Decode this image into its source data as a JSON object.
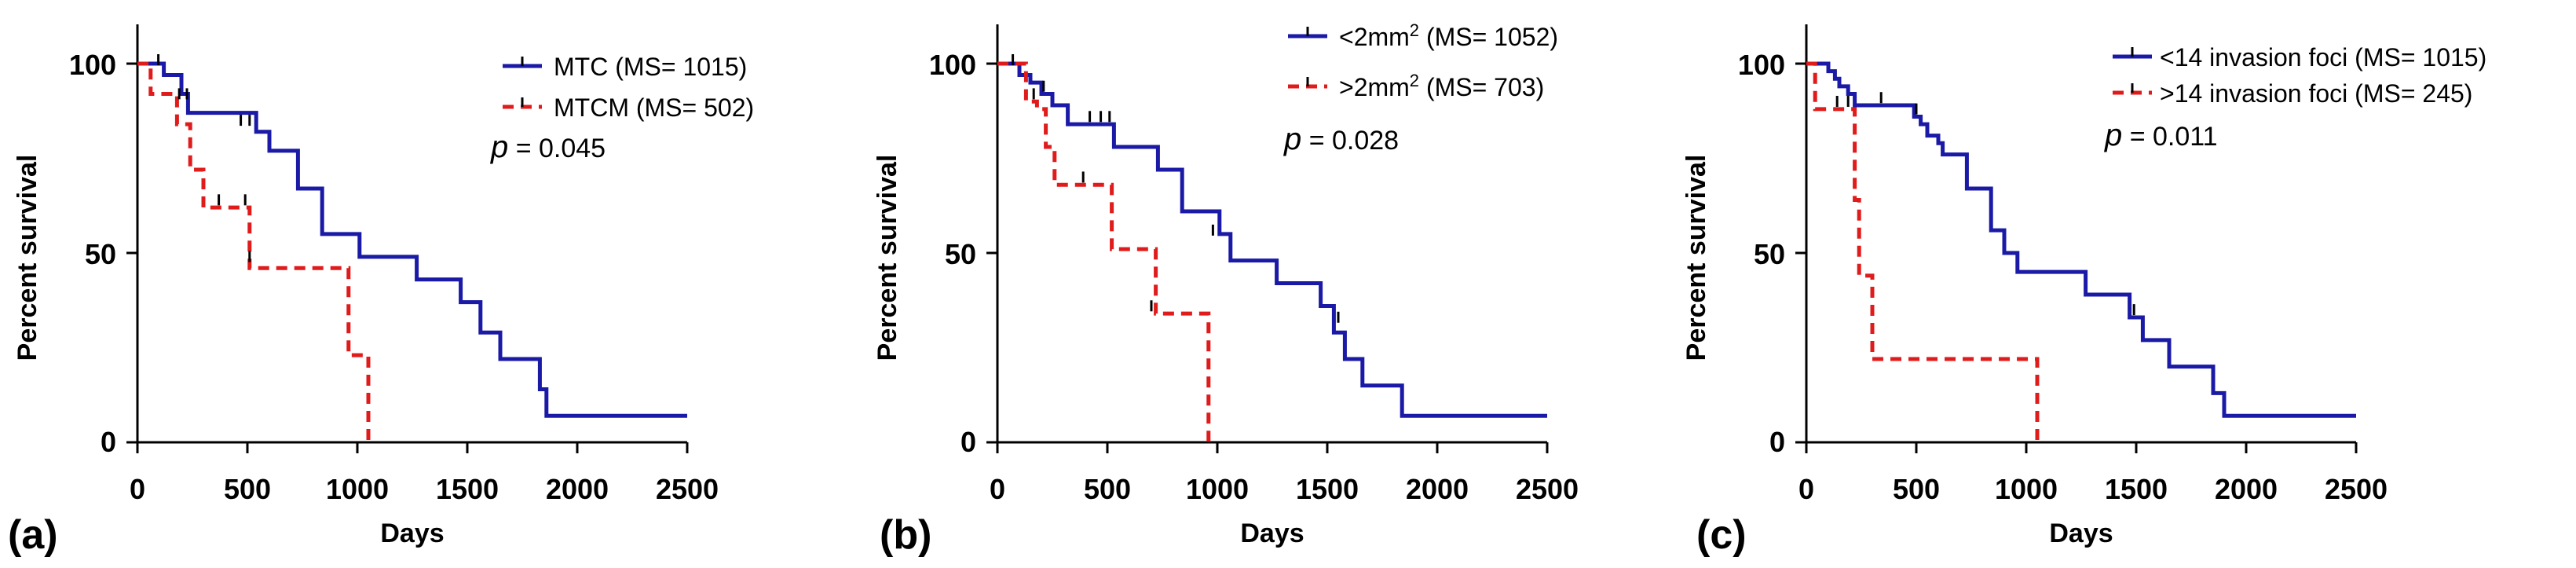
{
  "colors": {
    "blue": "#1a1aa6",
    "red": "#e01b1b",
    "axis": "#000000",
    "censor": "#000000"
  },
  "chart_data": [
    {
      "type": "line",
      "panel_label": "(a)",
      "xlabel": "Days",
      "ylabel": "Percent survival",
      "xlim": [
        0,
        2500
      ],
      "ylim": [
        0,
        100
      ],
      "xticks": [
        "0",
        "500",
        "1000",
        "1500",
        "2000",
        "2500"
      ],
      "yticks": [
        "0",
        "50",
        "100"
      ],
      "p_prefix": "p",
      "p_suffix": " = 0.045",
      "series": [
        {
          "name": "MTC (MS= 1015)",
          "name_pre": "MTC (MS= 1015)",
          "name_sup": "",
          "name_post": "",
          "color": "#1a1aa6",
          "dash": false,
          "x": [
            0,
            120,
            200,
            230,
            480,
            540,
            600,
            730,
            840,
            1010,
            1270,
            1470,
            1560,
            1650,
            1830,
            1860,
            1900,
            2500
          ],
          "y": [
            100,
            97,
            92,
            87,
            87,
            82,
            77,
            67,
            55,
            49,
            43,
            37,
            29,
            22,
            14,
            7,
            7,
            7
          ],
          "censors": [
            [
              95,
              100
            ],
            [
              225,
              91
            ],
            [
              470,
              84
            ],
            [
              510,
              84
            ]
          ]
        },
        {
          "name": "MTCM (MS= 502)",
          "name_pre": "MTCM (MS= 502)",
          "name_sup": "",
          "name_post": "",
          "color": "#e01b1b",
          "dash": true,
          "x": [
            0,
            60,
            180,
            240,
            300,
            490,
            510,
            960,
            1000,
            1050
          ],
          "y": [
            100,
            92,
            84,
            72,
            62,
            62,
            46,
            23,
            23,
            0
          ],
          "censors": [
            [
              190,
              91
            ],
            [
              370,
              63
            ],
            [
              490,
              63
            ],
            [
              510,
              48
            ]
          ]
        }
      ]
    },
    {
      "type": "line",
      "panel_label": "(b)",
      "xlabel": "Days",
      "ylabel": "Percent survival",
      "xlim": [
        0,
        2500
      ],
      "ylim": [
        0,
        100
      ],
      "xticks": [
        "0",
        "500",
        "1000",
        "1500",
        "2000",
        "2500"
      ],
      "yticks": [
        "0",
        "50",
        "100"
      ],
      "p_prefix": "p",
      "p_suffix": " = 0.028",
      "series": [
        {
          "name": "<2mm2 (MS= 1052)",
          "name_pre": "<2mm",
          "name_sup": "2",
          "name_post": " (MS= 1052)",
          "color": "#1a1aa6",
          "dash": false,
          "x": [
            0,
            100,
            150,
            200,
            250,
            320,
            530,
            730,
            840,
            1010,
            1060,
            1270,
            1470,
            1530,
            1580,
            1660,
            1840,
            1870,
            2500
          ],
          "y": [
            100,
            97,
            95,
            92,
            89,
            84,
            78,
            72,
            61,
            55,
            48,
            42,
            36,
            29,
            22,
            15,
            7,
            7,
            7
          ],
          "censors": [
            [
              70,
              100
            ],
            [
              210,
              93
            ],
            [
              420,
              85
            ],
            [
              470,
              85
            ],
            [
              510,
              85
            ],
            [
              980,
              55
            ],
            [
              1550,
              32
            ]
          ]
        },
        {
          "name": ">2mm2 (MS= 703)",
          "name_pre": ">2mm",
          "name_sup": "2",
          "name_post": " (MS= 703)",
          "color": "#e01b1b",
          "dash": true,
          "x": [
            0,
            130,
            180,
            220,
            260,
            500,
            520,
            720,
            950,
            960
          ],
          "y": [
            100,
            90,
            88,
            78,
            68,
            68,
            51,
            34,
            34,
            0
          ],
          "censors": [
            [
              165,
              91
            ],
            [
              390,
              69
            ],
            [
              700,
              35
            ]
          ]
        }
      ]
    },
    {
      "type": "line",
      "panel_label": "(c)",
      "xlabel": "Days",
      "ylabel": "Percent survival",
      "xlim": [
        0,
        2500
      ],
      "ylim": [
        0,
        100
      ],
      "xticks": [
        "0",
        "500",
        "1000",
        "1500",
        "2000",
        "2500"
      ],
      "yticks": [
        "0",
        "50",
        "100"
      ],
      "p_prefix": "p",
      "p_suffix": " = 0.011",
      "series": [
        {
          "name": "<14 invasion foci (MS= 1015)",
          "name_pre": "<14 invasion foci (MS= 1015)",
          "name_sup": "",
          "name_post": "",
          "color": "#1a1aa6",
          "dash": false,
          "x": [
            0,
            100,
            130,
            150,
            190,
            220,
            450,
            490,
            520,
            550,
            600,
            620,
            730,
            840,
            900,
            960,
            1010,
            1270,
            1470,
            1530,
            1580,
            1650,
            1850,
            1900,
            2500
          ],
          "y": [
            100,
            98,
            96,
            94,
            92,
            89,
            89,
            86,
            84,
            81,
            79,
            76,
            67,
            56,
            50,
            45,
            45,
            39,
            33,
            27,
            27,
            20,
            13,
            7,
            7
          ],
          "censors": [
            [
              340,
              90
            ],
            [
              500,
              87
            ],
            [
              1490,
              34
            ]
          ]
        },
        {
          "name": ">14 invasion foci (MS= 245)",
          "name_pre": ">14 invasion foci (MS= 245)",
          "name_sup": "",
          "name_post": "",
          "color": "#e01b1b",
          "dash": true,
          "x": [
            0,
            40,
            100,
            200,
            220,
            240,
            300,
            1040,
            1050
          ],
          "y": [
            100,
            88,
            88,
            88,
            64,
            44,
            22,
            22,
            0
          ],
          "censors": [
            [
              140,
              89
            ],
            [
              190,
              89
            ]
          ]
        }
      ]
    }
  ]
}
